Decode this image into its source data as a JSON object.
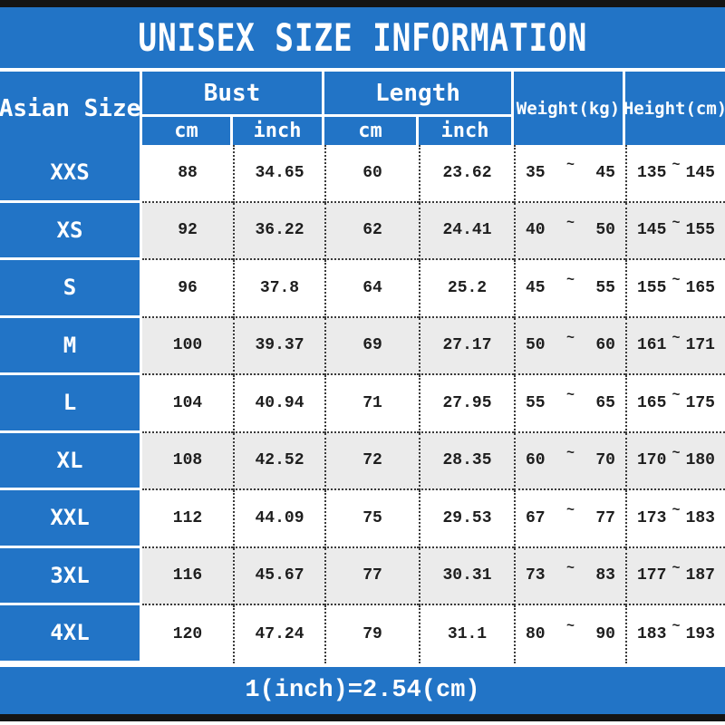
{
  "title": "UNISEX SIZE INFORMATION",
  "footer": {
    "note": "1(inch)=2.54(cm)"
  },
  "colors": {
    "accent_blue": "#2274c6",
    "row_alt_gray": "#ebebeb",
    "bar_black": "#141414",
    "text_dark": "#1e1e1e",
    "white": "#ffffff"
  },
  "table": {
    "corner_header": "Asian Size",
    "groups": [
      {
        "label": "Bust",
        "subs": [
          "cm",
          "inch"
        ]
      },
      {
        "label": "Length",
        "subs": [
          "cm",
          "inch"
        ]
      }
    ],
    "spanning_headers": [
      "Weight(kg)",
      "Height(cm)"
    ],
    "range_separator": "~",
    "rows": [
      {
        "size": "XXS",
        "bust_cm": "88",
        "bust_inch": "34.65",
        "length_cm": "60",
        "length_inch": "23.62",
        "weight_min": "35",
        "weight_max": "45",
        "height_min": "135",
        "height_max": "145"
      },
      {
        "size": "XS",
        "bust_cm": "92",
        "bust_inch": "36.22",
        "length_cm": "62",
        "length_inch": "24.41",
        "weight_min": "40",
        "weight_max": "50",
        "height_min": "145",
        "height_max": "155"
      },
      {
        "size": "S",
        "bust_cm": "96",
        "bust_inch": "37.8",
        "length_cm": "64",
        "length_inch": "25.2",
        "weight_min": "45",
        "weight_max": "55",
        "height_min": "155",
        "height_max": "165"
      },
      {
        "size": "M",
        "bust_cm": "100",
        "bust_inch": "39.37",
        "length_cm": "69",
        "length_inch": "27.17",
        "weight_min": "50",
        "weight_max": "60",
        "height_min": "161",
        "height_max": "171"
      },
      {
        "size": "L",
        "bust_cm": "104",
        "bust_inch": "40.94",
        "length_cm": "71",
        "length_inch": "27.95",
        "weight_min": "55",
        "weight_max": "65",
        "height_min": "165",
        "height_max": "175"
      },
      {
        "size": "XL",
        "bust_cm": "108",
        "bust_inch": "42.52",
        "length_cm": "72",
        "length_inch": "28.35",
        "weight_min": "60",
        "weight_max": "70",
        "height_min": "170",
        "height_max": "180"
      },
      {
        "size": "XXL",
        "bust_cm": "112",
        "bust_inch": "44.09",
        "length_cm": "75",
        "length_inch": "29.53",
        "weight_min": "67",
        "weight_max": "77",
        "height_min": "173",
        "height_max": "183"
      },
      {
        "size": "3XL",
        "bust_cm": "116",
        "bust_inch": "45.67",
        "length_cm": "77",
        "length_inch": "30.31",
        "weight_min": "73",
        "weight_max": "83",
        "height_min": "177",
        "height_max": "187"
      },
      {
        "size": "4XL",
        "bust_cm": "120",
        "bust_inch": "47.24",
        "length_cm": "79",
        "length_inch": "31.1",
        "weight_min": "80",
        "weight_max": "90",
        "height_min": "183",
        "height_max": "193"
      }
    ]
  }
}
